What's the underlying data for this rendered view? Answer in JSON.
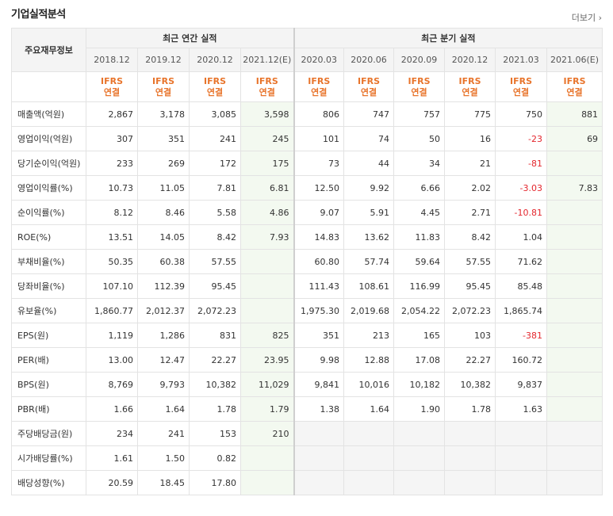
{
  "header": {
    "title": "기업실적분석",
    "more_label": "더보기 ›"
  },
  "table": {
    "corner_label": "주요재무정보",
    "group_annual": "최근 연간 실적",
    "group_quarter": "최근 분기 실적",
    "periods": [
      "2018.12",
      "2019.12",
      "2020.12",
      "2021.12(E)",
      "2020.03",
      "2020.06",
      "2020.09",
      "2020.12",
      "2021.03",
      "2021.06(E)"
    ],
    "ifrs_line1": "IFRS",
    "ifrs_line2": "연결",
    "rows": [
      {
        "label": "매출액(억원)",
        "values": [
          "2,867",
          "3,178",
          "3,085",
          "3,598",
          "806",
          "747",
          "757",
          "775",
          "750",
          "881"
        ]
      },
      {
        "label": "영업이익(억원)",
        "values": [
          "307",
          "351",
          "241",
          "245",
          "101",
          "74",
          "50",
          "16",
          "-23",
          "69"
        ]
      },
      {
        "label": "당기순이익(억원)",
        "values": [
          "233",
          "269",
          "172",
          "175",
          "73",
          "44",
          "34",
          "21",
          "-81",
          ""
        ]
      },
      {
        "label": "영업이익률(%)",
        "values": [
          "10.73",
          "11.05",
          "7.81",
          "6.81",
          "12.50",
          "9.92",
          "6.66",
          "2.02",
          "-3.03",
          "7.83"
        ]
      },
      {
        "label": "순이익률(%)",
        "values": [
          "8.12",
          "8.46",
          "5.58",
          "4.86",
          "9.07",
          "5.91",
          "4.45",
          "2.71",
          "-10.81",
          ""
        ]
      },
      {
        "label": "ROE(%)",
        "values": [
          "13.51",
          "14.05",
          "8.42",
          "7.93",
          "14.83",
          "13.62",
          "11.83",
          "8.42",
          "1.04",
          ""
        ]
      },
      {
        "label": "부채비율(%)",
        "values": [
          "50.35",
          "60.38",
          "57.55",
          "",
          "60.80",
          "57.74",
          "59.64",
          "57.55",
          "71.62",
          ""
        ]
      },
      {
        "label": "당좌비율(%)",
        "values": [
          "107.10",
          "112.39",
          "95.45",
          "",
          "111.43",
          "108.61",
          "116.99",
          "95.45",
          "85.48",
          ""
        ]
      },
      {
        "label": "유보율(%)",
        "values": [
          "1,860.77",
          "2,012.37",
          "2,072.23",
          "",
          "1,975.30",
          "2,019.68",
          "2,054.22",
          "2,072.23",
          "1,865.74",
          ""
        ]
      },
      {
        "label": "EPS(원)",
        "values": [
          "1,119",
          "1,286",
          "831",
          "825",
          "351",
          "213",
          "165",
          "103",
          "-381",
          ""
        ]
      },
      {
        "label": "PER(배)",
        "values": [
          "13.00",
          "12.47",
          "22.27",
          "23.95",
          "9.98",
          "12.88",
          "17.08",
          "22.27",
          "160.72",
          ""
        ]
      },
      {
        "label": "BPS(원)",
        "values": [
          "8,769",
          "9,793",
          "10,382",
          "11,029",
          "9,841",
          "10,016",
          "10,182",
          "10,382",
          "9,837",
          ""
        ]
      },
      {
        "label": "PBR(배)",
        "values": [
          "1.66",
          "1.64",
          "1.78",
          "1.79",
          "1.38",
          "1.64",
          "1.90",
          "1.78",
          "1.63",
          ""
        ]
      },
      {
        "label": "주당배당금(원)",
        "values": [
          "234",
          "241",
          "153",
          "210",
          "",
          "",
          "",
          "",
          "",
          ""
        ]
      },
      {
        "label": "시가배당률(%)",
        "values": [
          "1.61",
          "1.50",
          "0.82",
          "",
          "",
          "",
          "",
          "",
          "",
          ""
        ]
      },
      {
        "label": "배당성향(%)",
        "values": [
          "20.59",
          "18.45",
          "17.80",
          "",
          "",
          "",
          "",
          "",
          "",
          ""
        ]
      }
    ]
  },
  "colors": {
    "ifrs": "#e8742b",
    "negative": "#e4262d",
    "estimate_bg": "#f3f9f0",
    "header_bg": "#f4f4f4",
    "empty_bg": "#f5f5f5"
  }
}
